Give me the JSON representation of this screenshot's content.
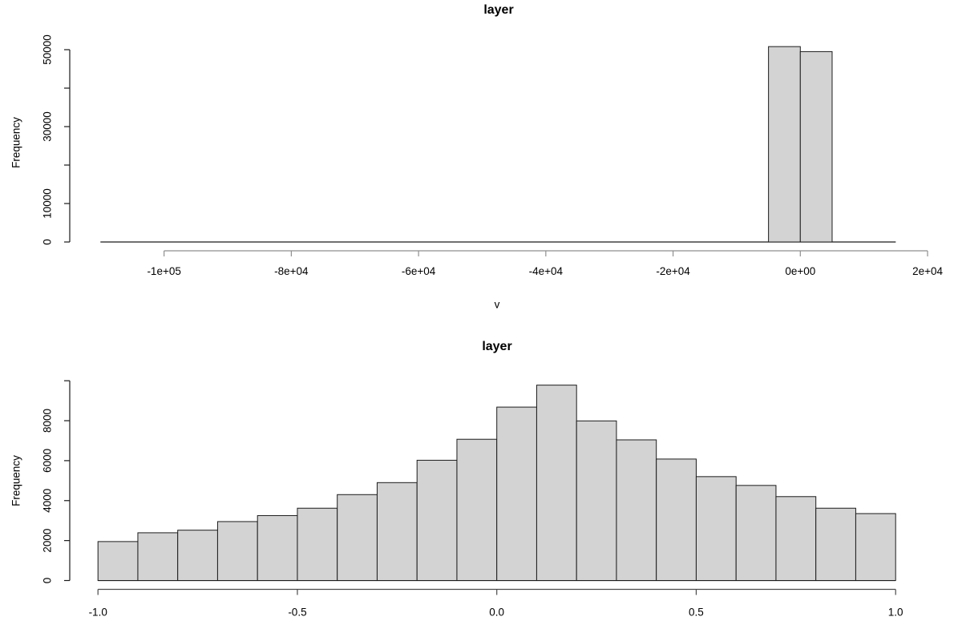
{
  "page": {
    "background": "#ffffff",
    "text_color": "#000000"
  },
  "chart_data": [
    {
      "type": "bar",
      "subtype": "histogram",
      "title": "layer",
      "xlabel": "v",
      "ylabel": "Frequency",
      "bar_fill": "#d3d3d3",
      "bar_stroke": "#1c1c1c",
      "grid": "off",
      "legend": "none",
      "xlim": [
        -115000,
        20000
      ],
      "ylim": [
        0,
        50000
      ],
      "x_ticks": [
        {
          "value": -100000,
          "label": "-1e+05"
        },
        {
          "value": -80000,
          "label": "-8e+04"
        },
        {
          "value": -60000,
          "label": "-6e+04"
        },
        {
          "value": -40000,
          "label": "-4e+04"
        },
        {
          "value": -20000,
          "label": "-2e+04"
        },
        {
          "value": 0,
          "label": "0e+00"
        },
        {
          "value": 20000,
          "label": "2e+04"
        }
      ],
      "y_ticks": [
        {
          "value": 0,
          "label": "0"
        },
        {
          "value": 10000,
          "label": "10000"
        },
        {
          "value": 20000,
          "label": ""
        },
        {
          "value": 30000,
          "label": "30000"
        },
        {
          "value": 40000,
          "label": ""
        },
        {
          "value": 50000,
          "label": "50000"
        }
      ],
      "bin_start": -5000,
      "bin_width": 5000,
      "counts": [
        50800,
        49500
      ],
      "baseline_extent": [
        -110000,
        15000
      ],
      "note": "all other bins between -110000 and 15000 have counts near 0 (rendered as flat baseline)"
    },
    {
      "type": "bar",
      "subtype": "histogram",
      "title": "layer",
      "xlabel": "",
      "ylabel": "Frequency",
      "bar_fill": "#d3d3d3",
      "bar_stroke": "#1c1c1c",
      "grid": "off",
      "legend": "none",
      "xlim": [
        -1.08,
        1.08
      ],
      "ylim": [
        0,
        10000
      ],
      "x_ticks": [
        {
          "value": -1.0,
          "label": "-1.0"
        },
        {
          "value": -0.5,
          "label": "-0.5"
        },
        {
          "value": 0.0,
          "label": "0.0"
        },
        {
          "value": 0.5,
          "label": "0.5"
        },
        {
          "value": 1.0,
          "label": "1.0"
        }
      ],
      "y_ticks": [
        {
          "value": 0,
          "label": "0"
        },
        {
          "value": 2000,
          "label": "2000"
        },
        {
          "value": 4000,
          "label": "4000"
        },
        {
          "value": 6000,
          "label": "6000"
        },
        {
          "value": 8000,
          "label": "8000"
        },
        {
          "value": 10000,
          "label": ""
        }
      ],
      "bin_start": -1.0,
      "bin_width": 0.1,
      "counts": [
        1950,
        2390,
        2520,
        2950,
        3250,
        3620,
        4300,
        4900,
        6020,
        7070,
        8680,
        9780,
        7990,
        7040,
        6080,
        5200,
        4760,
        4200,
        3620,
        3350
      ],
      "baseline_extent": [
        -1.0,
        1.0
      ]
    }
  ]
}
